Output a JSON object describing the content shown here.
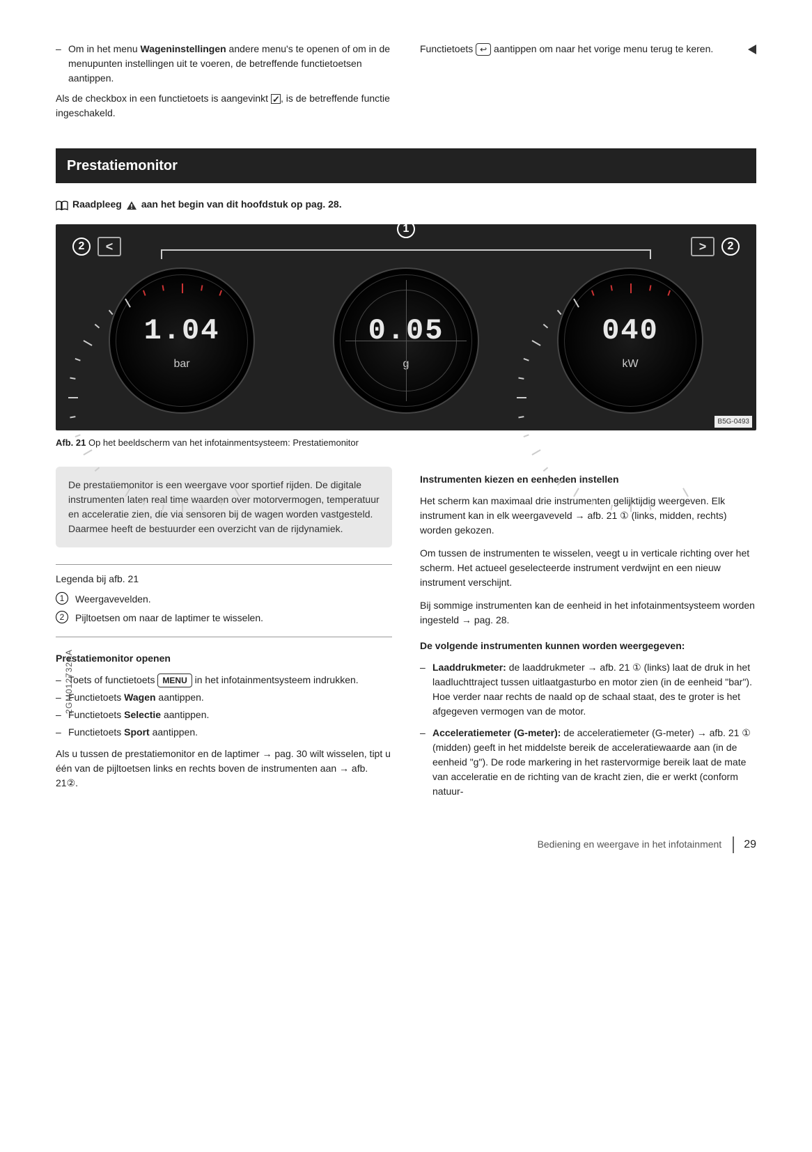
{
  "top": {
    "left_bullet": "Om in het menu ",
    "left_bullet_bold": "Wageninstellingen",
    "left_bullet_rest": " andere menu's te openen of om in de menupunten instellingen uit te voeren, de betreffende functietoetsen aantippen.",
    "checkbox_line_a": "Als de checkbox in een functietoets is aangevinkt ",
    "checkbox_line_b": ", is de betreffende functie ingeschakeld.",
    "right_a": "Functietoets ",
    "right_b": " aantippen om naar het vorige menu terug te keren."
  },
  "section_title": "Prestatiemonitor",
  "raadpleeg": {
    "a": "Raadpleeg ",
    "b": " aan het begin van dit hoofdstuk op pag. 28."
  },
  "gauges": {
    "left": {
      "value": "1.04",
      "unit": "bar"
    },
    "mid": {
      "value": "0.05",
      "unit": "g"
    },
    "right": {
      "value": "040",
      "unit": "kW"
    },
    "label1": "1",
    "label2": "2",
    "arrow_l": "<",
    "arrow_r": ">",
    "code": "B5G-0493"
  },
  "caption": {
    "b": "Afb. 21",
    "rest": "  Op het beeldscherm van het infotainmentsysteem: Prestatiemonitor"
  },
  "intro": "De prestatiemonitor is een weergave voor sportief rijden. De digitale instrumenten laten real time waarden over motorvermogen, temperatuur en acceleratie zien, die via sensoren bij de wagen worden vastgesteld. Daarmee heeft de bestuurder een overzicht van de rijdynamiek.",
  "legend": {
    "title": "Legenda bij afb. 21",
    "i1": "Weergavevelden.",
    "i2": "Pijltoetsen om naar de laptimer te wisselen."
  },
  "open": {
    "hdr": "Prestatiemonitor openen",
    "b1a": "Toets of functietoets ",
    "b1key": "MENU",
    "b1b": " in het infotainmentsysteem indrukken.",
    "b2a": "Functietoets ",
    "b2bold": "Wagen",
    "b2b": " aantippen.",
    "b3a": "Functietoets ",
    "b3bold": "Selectie",
    "b3b": " aantippen.",
    "b4a": "Functietoets ",
    "b4bold": "Sport",
    "b4b": " aantippen.",
    "tail": "Als u tussen de prestatiemonitor en de laptimer → pag. 30 wilt wisselen, tipt u één van de pijltoetsen links en rechts boven de instrumenten aan → afb. 21②."
  },
  "right": {
    "hdr1": "Instrumenten kiezen en eenheden instellen",
    "p1": "Het scherm kan maximaal drie instrumenten gelijktijdig weergeven. Elk instrument kan in elk weergaveveld → afb. 21 ① (links, midden, rechts) worden gekozen.",
    "p2": "Om tussen de instrumenten te wisselen, veegt u in verticale richting over het scherm. Het actueel geselecteerde instrument verdwijnt en een nieuw instrument verschijnt.",
    "p3": "Bij sommige instrumenten kan de eenheid in het infotainmentsysteem worden ingesteld → pag. 28.",
    "hdr2": "De volgende instrumenten kunnen worden weergegeven:",
    "li1b": "Laaddrukmeter:",
    "li1": " de laaddrukmeter → afb. 21 ① (links) laat de druk in het laadluchttraject tussen uitlaatgasturbo en motor zien (in de eenheid \"bar\"). Hoe verder naar rechts de naald op de schaal staat, des te groter is het afgegeven vermogen van de motor.",
    "li2b": "Acceleratiemeter (G-meter):",
    "li2": " de acceleratiemeter (G-meter) → afb. 21 ① (midden) geeft in het middelste bereik de acceleratiewaarde aan (in de eenheid \"g\"). De rode markering in het rastervormige bereik laat de mate van acceleratie en de richting van de kracht zien, die er werkt (conform natuur-"
  },
  "footer": {
    "text": "Bediening en weergave in het infotainment",
    "page": "29"
  },
  "sidecode": "2GM012732AA"
}
